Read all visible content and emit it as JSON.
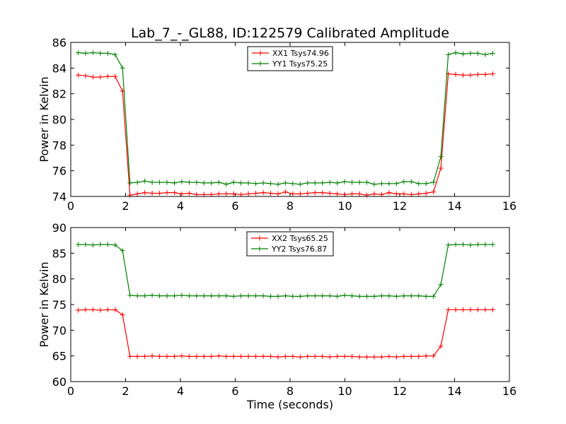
{
  "title": "Lab_7_-_GL88, ID:122579 Calibrated Amplitude",
  "chart_data": [
    {
      "type": "line",
      "ylabel": "Power in Kelvin",
      "xlabel": "",
      "xlim": [
        0,
        16
      ],
      "ylim": [
        74,
        86
      ],
      "xticks": [
        "0",
        "2",
        "4",
        "6",
        "8",
        "10",
        "12",
        "14",
        "16"
      ],
      "yticks": [
        "74",
        "76",
        "78",
        "80",
        "82",
        "84",
        "86"
      ],
      "legend_position": "top-center",
      "x": [
        0.27,
        0.54,
        0.81,
        1.08,
        1.35,
        1.62,
        1.89,
        2.16,
        2.43,
        2.7,
        2.97,
        3.24,
        3.51,
        3.78,
        4.05,
        4.32,
        4.59,
        4.86,
        5.13,
        5.4,
        5.67,
        5.94,
        6.21,
        6.48,
        6.75,
        7.02,
        7.29,
        7.56,
        7.83,
        8.1,
        8.37,
        8.64,
        8.91,
        9.18,
        9.45,
        9.72,
        9.99,
        10.26,
        10.53,
        10.8,
        11.07,
        11.34,
        11.61,
        11.88,
        12.15,
        12.42,
        12.69,
        12.96,
        13.23,
        13.5,
        13.77,
        14.04,
        14.31,
        14.58,
        14.85,
        15.12,
        15.39
      ],
      "series": [
        {
          "name": "XX1 Tsys74.96",
          "color": "#ff0000",
          "values": [
            83.45,
            83.4,
            83.3,
            83.3,
            83.35,
            83.35,
            82.2,
            74.1,
            74.2,
            74.3,
            74.25,
            74.25,
            74.3,
            74.3,
            74.2,
            74.25,
            74.15,
            74.15,
            74.15,
            74.2,
            74.2,
            74.2,
            74.15,
            74.2,
            74.25,
            74.3,
            74.25,
            74.2,
            74.35,
            74.2,
            74.2,
            74.25,
            74.3,
            74.3,
            74.25,
            74.2,
            74.15,
            74.2,
            74.2,
            74.1,
            74.2,
            74.15,
            74.3,
            74.2,
            74.2,
            74.15,
            74.2,
            74.25,
            74.35,
            76.2,
            83.55,
            83.5,
            83.45,
            83.45,
            83.5,
            83.5,
            83.55
          ]
        },
        {
          "name": "YY1 Tsys75.25",
          "color": "#008000",
          "values": [
            85.2,
            85.15,
            85.2,
            85.15,
            85.15,
            85.05,
            84.0,
            75.05,
            75.1,
            75.2,
            75.1,
            75.1,
            75.1,
            75.05,
            75.15,
            75.1,
            75.1,
            75.05,
            75.05,
            75.1,
            74.95,
            75.1,
            75.05,
            75.05,
            75.0,
            75.05,
            75.0,
            74.95,
            75.05,
            75.0,
            74.95,
            75.05,
            75.05,
            75.05,
            75.1,
            75.05,
            75.15,
            75.1,
            75.1,
            75.1,
            74.95,
            75.0,
            75.0,
            75.0,
            75.15,
            75.15,
            75.0,
            75.0,
            75.1,
            77.1,
            85.05,
            85.2,
            85.1,
            85.15,
            85.15,
            85.05,
            85.15
          ]
        }
      ]
    },
    {
      "type": "line",
      "ylabel": "Power in Kelvin",
      "xlabel": "Time (seconds)",
      "xlim": [
        0,
        16
      ],
      "ylim": [
        60,
        90
      ],
      "xticks": [
        "0",
        "2",
        "4",
        "6",
        "8",
        "10",
        "12",
        "14",
        "16"
      ],
      "yticks": [
        "60",
        "65",
        "70",
        "75",
        "80",
        "85",
        "90"
      ],
      "legend_position": "top-center",
      "x": [
        0.27,
        0.54,
        0.81,
        1.08,
        1.35,
        1.62,
        1.89,
        2.16,
        2.43,
        2.7,
        2.97,
        3.24,
        3.51,
        3.78,
        4.05,
        4.32,
        4.59,
        4.86,
        5.13,
        5.4,
        5.67,
        5.94,
        6.21,
        6.48,
        6.75,
        7.02,
        7.29,
        7.56,
        7.83,
        8.1,
        8.37,
        8.64,
        8.91,
        9.18,
        9.45,
        9.72,
        9.99,
        10.26,
        10.53,
        10.8,
        11.07,
        11.34,
        11.61,
        11.88,
        12.15,
        12.42,
        12.69,
        12.96,
        13.23,
        13.5,
        13.77,
        14.04,
        14.31,
        14.58,
        14.85,
        15.12,
        15.39
      ],
      "series": [
        {
          "name": "XX2 Tsys65.25",
          "color": "#ff0000",
          "values": [
            73.9,
            74.0,
            74.0,
            73.9,
            74.0,
            74.0,
            73.0,
            64.9,
            64.9,
            64.9,
            65.0,
            64.9,
            64.9,
            64.9,
            65.0,
            64.9,
            64.9,
            64.9,
            64.9,
            65.0,
            64.9,
            64.9,
            64.9,
            64.9,
            64.9,
            64.9,
            64.9,
            64.8,
            64.9,
            64.9,
            64.8,
            64.9,
            64.9,
            64.9,
            64.8,
            64.9,
            64.9,
            64.9,
            64.8,
            64.8,
            64.8,
            64.8,
            64.9,
            64.8,
            64.9,
            64.9,
            64.9,
            65.0,
            65.0,
            66.9,
            74.0,
            74.0,
            74.0,
            74.0,
            74.0,
            74.0,
            74.0
          ]
        },
        {
          "name": "YY2 Tsys76.87",
          "color": "#008000",
          "values": [
            86.7,
            86.7,
            86.6,
            86.7,
            86.7,
            86.6,
            85.5,
            76.8,
            76.7,
            76.7,
            76.8,
            76.7,
            76.7,
            76.7,
            76.8,
            76.7,
            76.7,
            76.7,
            76.7,
            76.7,
            76.7,
            76.6,
            76.7,
            76.7,
            76.7,
            76.7,
            76.6,
            76.6,
            76.7,
            76.6,
            76.6,
            76.7,
            76.7,
            76.7,
            76.7,
            76.6,
            76.8,
            76.7,
            76.6,
            76.6,
            76.6,
            76.7,
            76.7,
            76.6,
            76.7,
            76.7,
            76.7,
            76.6,
            76.6,
            78.9,
            86.6,
            86.7,
            86.7,
            86.6,
            86.7,
            86.7,
            86.7
          ]
        }
      ]
    }
  ]
}
